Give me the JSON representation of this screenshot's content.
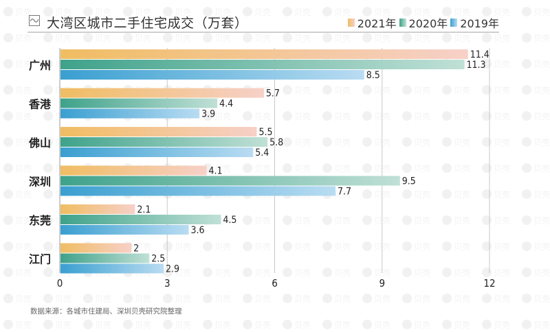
{
  "header": {
    "icon": "line-chart-icon",
    "title": "大湾区城市二手住宅成交（万套）"
  },
  "legend": [
    {
      "label": "2021年",
      "color_from": "#f0bd62",
      "color_to": "#f7d0c8"
    },
    {
      "label": "2020年",
      "color_from": "#3fa28a",
      "color_to": "#c0e0d6"
    },
    {
      "label": "2019年",
      "color_from": "#3a9fd0",
      "color_to": "#b9dcf2"
    }
  ],
  "source": "数据来源：各城市住建局、深圳贝壳研究院整理",
  "watermark_text": "贝壳",
  "chart_data": {
    "type": "bar",
    "orientation": "horizontal",
    "title": "大湾区城市二手住宅成交（万套）",
    "xlabel": "",
    "ylabel": "",
    "categories": [
      "广州",
      "香港",
      "佛山",
      "深圳",
      "东莞",
      "江门"
    ],
    "series": [
      {
        "name": "2021年",
        "values": [
          11.4,
          5.7,
          5.5,
          4.1,
          2.1,
          2
        ]
      },
      {
        "name": "2020年",
        "values": [
          11.3,
          4.4,
          5.8,
          9.5,
          4.5,
          2.5
        ]
      },
      {
        "name": "2019年",
        "values": [
          8.5,
          3.9,
          5.4,
          7.7,
          3.6,
          2.9
        ]
      }
    ],
    "xlim": [
      0,
      12
    ],
    "xticks": [
      0,
      3,
      6,
      9,
      12
    ],
    "grid": "vertical",
    "legend_position": "top-right",
    "data_labels": true
  }
}
